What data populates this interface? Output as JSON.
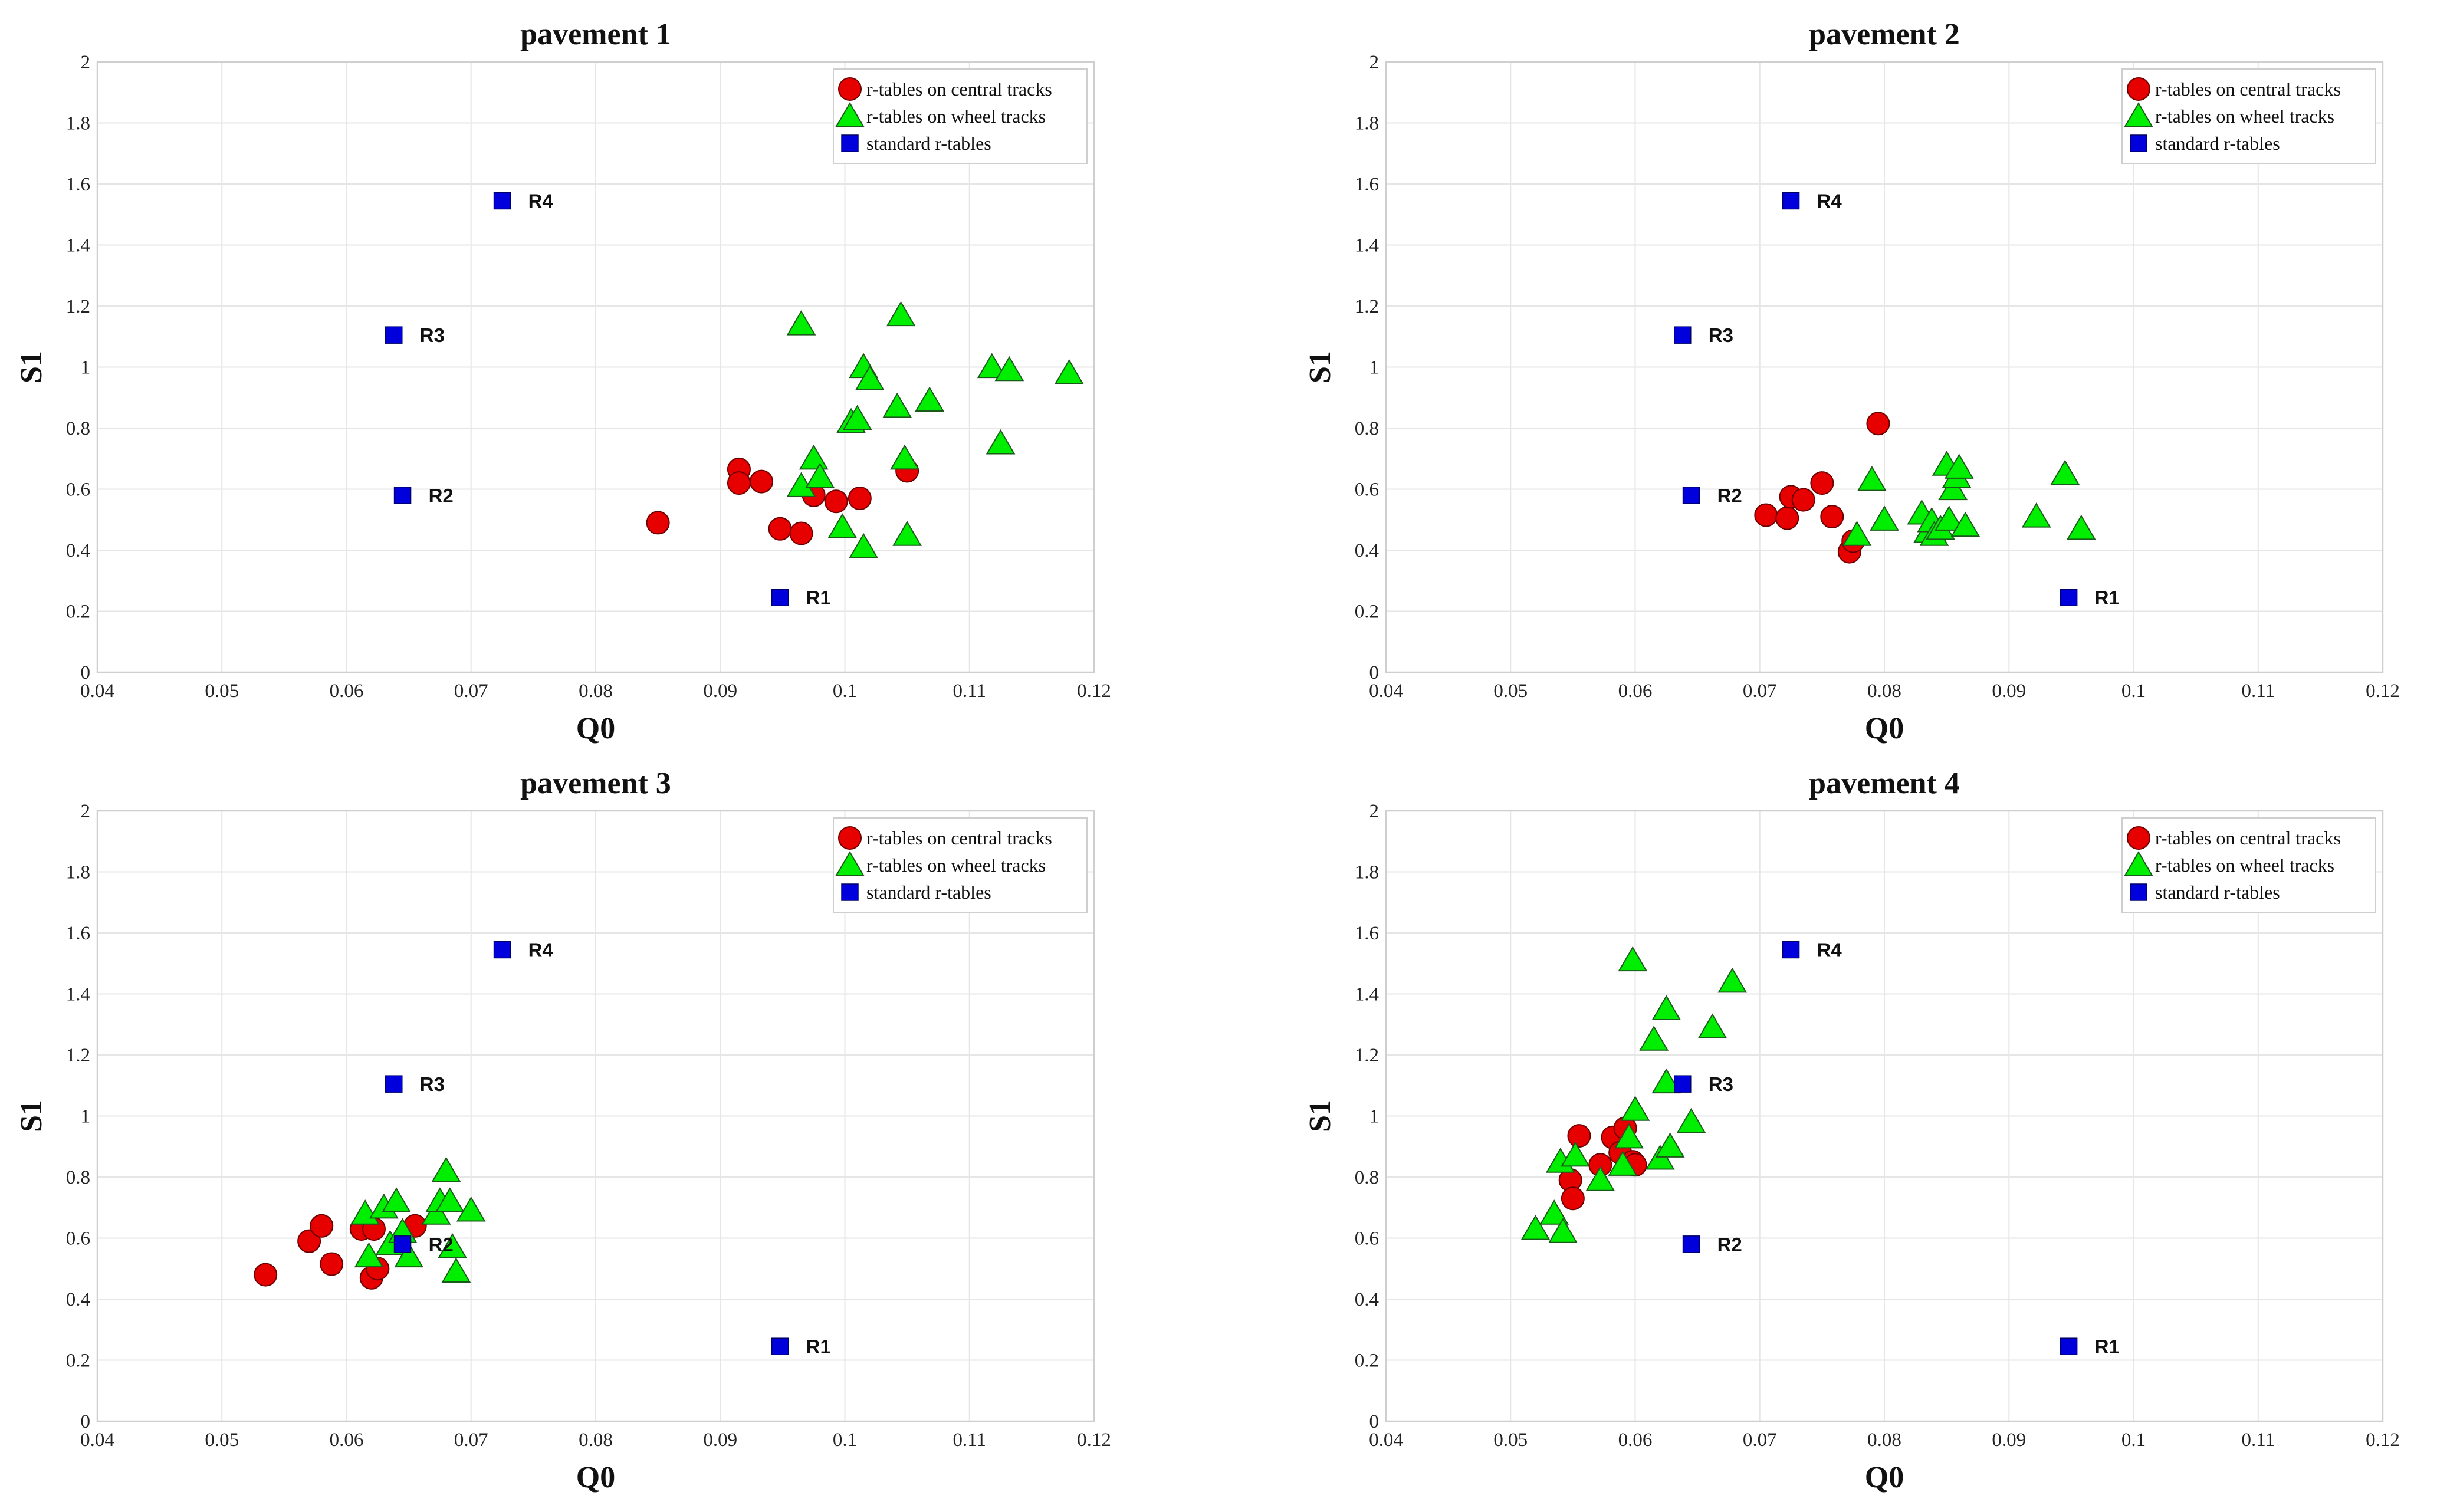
{
  "colors": {
    "central": "#e60000",
    "wheel": "#00ee00",
    "standard": "#0000dd"
  },
  "chart_data": [
    {
      "type": "scatter",
      "title": "pavement 1",
      "xlabel": "Q0",
      "ylabel": "S1",
      "xlim": [
        0.04,
        0.12
      ],
      "ylim": [
        0,
        2
      ],
      "xticks": [
        "0.04",
        "0.05",
        "0.06",
        "0.07",
        "0.08",
        "0.09",
        "0.1",
        "0.11",
        "0.12"
      ],
      "yticks": [
        "0",
        "0.2",
        "0.4",
        "0.6",
        "0.8",
        "1",
        "1.2",
        "1.4",
        "1.6",
        "1.8",
        "2"
      ],
      "grid": true,
      "legend_position": "top-right",
      "legend": [
        "r-tables on central tracks",
        "r-tables on wheel tracks",
        "standard r-tables"
      ],
      "series": [
        {
          "name": "r-tables on central tracks",
          "marker": "circle",
          "x": [
            0.085,
            0.0915,
            0.0915,
            0.0933,
            0.0948,
            0.0965,
            0.0975,
            0.0993,
            0.1012,
            0.105
          ],
          "y": [
            0.49,
            0.665,
            0.62,
            0.625,
            0.47,
            0.455,
            0.58,
            0.56,
            0.57,
            0.66
          ]
        },
        {
          "name": "r-tables on wheel tracks",
          "marker": "triangle",
          "x": [
            0.0965,
            0.0965,
            0.0975,
            0.098,
            0.0998,
            0.1005,
            0.101,
            0.1015,
            0.1015,
            0.102,
            0.1042,
            0.1045,
            0.1048,
            0.105,
            0.1068,
            0.1118,
            0.1125,
            0.1132,
            0.118
          ],
          "y": [
            1.14,
            0.61,
            0.7,
            0.64,
            0.475,
            0.82,
            0.83,
            0.41,
            1.0,
            0.96,
            0.87,
            1.17,
            0.7,
            0.45,
            0.89,
            1.0,
            0.75,
            0.99,
            0.98
          ]
        },
        {
          "name": "standard r-tables",
          "marker": "square",
          "x": [
            0.0948,
            0.0645,
            0.0638,
            0.0725
          ],
          "y": [
            0.245,
            0.58,
            1.105,
            1.545
          ],
          "labels": [
            "R1",
            "R2",
            "R3",
            "R4"
          ]
        }
      ]
    },
    {
      "type": "scatter",
      "title": "pavement 2",
      "xlabel": "Q0",
      "ylabel": "S1",
      "xlim": [
        0.04,
        0.12
      ],
      "ylim": [
        0,
        2
      ],
      "xticks": [
        "0.04",
        "0.05",
        "0.06",
        "0.07",
        "0.08",
        "0.09",
        "0.1",
        "0.11",
        "0.12"
      ],
      "yticks": [
        "0",
        "0.2",
        "0.4",
        "0.6",
        "0.8",
        "1",
        "1.2",
        "1.4",
        "1.6",
        "1.8",
        "2"
      ],
      "grid": true,
      "legend_position": "top-right",
      "legend": [
        "r-tables on central tracks",
        "r-tables on wheel tracks",
        "standard r-tables"
      ],
      "series": [
        {
          "name": "r-tables on central tracks",
          "marker": "circle",
          "x": [
            0.0705,
            0.0722,
            0.0725,
            0.0735,
            0.075,
            0.0758,
            0.0772,
            0.0775,
            0.0795
          ],
          "y": [
            0.515,
            0.505,
            0.575,
            0.565,
            0.62,
            0.51,
            0.395,
            0.43,
            0.815
          ]
        },
        {
          "name": "r-tables on wheel tracks",
          "marker": "triangle",
          "x": [
            0.0778,
            0.079,
            0.08,
            0.083,
            0.0835,
            0.0838,
            0.084,
            0.0845,
            0.085,
            0.0852,
            0.0855,
            0.0858,
            0.086,
            0.0865,
            0.0922,
            0.0945,
            0.0958
          ],
          "y": [
            0.45,
            0.63,
            0.5,
            0.52,
            0.46,
            0.495,
            0.45,
            0.47,
            0.68,
            0.5,
            0.6,
            0.64,
            0.67,
            0.48,
            0.51,
            0.65,
            0.47
          ]
        },
        {
          "name": "standard r-tables",
          "marker": "square",
          "x": [
            0.0948,
            0.0645,
            0.0638,
            0.0725
          ],
          "y": [
            0.245,
            0.58,
            1.105,
            1.545
          ],
          "labels": [
            "R1",
            "R2",
            "R3",
            "R4"
          ]
        }
      ]
    },
    {
      "type": "scatter",
      "title": "pavement 3",
      "xlabel": "Q0",
      "ylabel": "S1",
      "xlim": [
        0.04,
        0.12
      ],
      "ylim": [
        0,
        2
      ],
      "xticks": [
        "0.04",
        "0.05",
        "0.06",
        "0.07",
        "0.08",
        "0.09",
        "0.1",
        "0.11",
        "0.12"
      ],
      "yticks": [
        "0",
        "0.2",
        "0.4",
        "0.6",
        "0.8",
        "1",
        "1.2",
        "1.4",
        "1.6",
        "1.8",
        "2"
      ],
      "grid": true,
      "legend_position": "top-right",
      "legend": [
        "r-tables on central tracks",
        "r-tables on wheel tracks",
        "standard r-tables"
      ],
      "series": [
        {
          "name": "r-tables on central tracks",
          "marker": "circle",
          "x": [
            0.0535,
            0.057,
            0.058,
            0.0588,
            0.0612,
            0.062,
            0.0622,
            0.0625,
            0.0655
          ],
          "y": [
            0.48,
            0.59,
            0.64,
            0.515,
            0.63,
            0.47,
            0.63,
            0.5,
            0.64
          ]
        },
        {
          "name": "r-tables on wheel tracks",
          "marker": "triangle",
          "x": [
            0.0615,
            0.0618,
            0.063,
            0.0635,
            0.064,
            0.0645,
            0.065,
            0.0672,
            0.0675,
            0.068,
            0.0683,
            0.0685,
            0.0688,
            0.07
          ],
          "y": [
            0.68,
            0.54,
            0.7,
            0.58,
            0.72,
            0.62,
            0.54,
            0.68,
            0.72,
            0.82,
            0.72,
            0.57,
            0.49,
            0.69
          ]
        },
        {
          "name": "standard r-tables",
          "marker": "square",
          "x": [
            0.0948,
            0.0645,
            0.0638,
            0.0725
          ],
          "y": [
            0.245,
            0.58,
            1.105,
            1.545
          ],
          "labels": [
            "R1",
            "R2",
            "R3",
            "R4"
          ]
        }
      ]
    },
    {
      "type": "scatter",
      "title": "pavement 4",
      "xlabel": "Q0",
      "ylabel": "S1",
      "xlim": [
        0.04,
        0.12
      ],
      "ylim": [
        0,
        2
      ],
      "xticks": [
        "0.04",
        "0.05",
        "0.06",
        "0.07",
        "0.08",
        "0.09",
        "0.1",
        "0.11",
        "0.12"
      ],
      "yticks": [
        "0",
        "0.2",
        "0.4",
        "0.6",
        "0.8",
        "1",
        "1.2",
        "1.4",
        "1.6",
        "1.8",
        "2"
      ],
      "grid": true,
      "legend_position": "top-right",
      "legend": [
        "r-tables on central tracks",
        "r-tables on wheel tracks",
        "standard r-tables"
      ],
      "series": [
        {
          "name": "r-tables on central tracks",
          "marker": "circle",
          "x": [
            0.0548,
            0.055,
            0.0555,
            0.0572,
            0.0582,
            0.0588,
            0.0592,
            0.0598,
            0.06
          ],
          "y": [
            0.79,
            0.73,
            0.935,
            0.84,
            0.93,
            0.88,
            0.96,
            0.85,
            0.84
          ]
        },
        {
          "name": "r-tables on wheel tracks",
          "marker": "triangle",
          "x": [
            0.052,
            0.0535,
            0.054,
            0.0542,
            0.0552,
            0.0572,
            0.059,
            0.0595,
            0.0598,
            0.06,
            0.0615,
            0.062,
            0.0625,
            0.0625,
            0.0628,
            0.0645,
            0.0662,
            0.0678
          ],
          "y": [
            0.63,
            0.68,
            0.85,
            0.62,
            0.87,
            0.79,
            0.84,
            0.93,
            1.51,
            1.02,
            1.25,
            0.86,
            1.35,
            1.11,
            0.9,
            0.98,
            1.29,
            1.44
          ]
        },
        {
          "name": "standard r-tables",
          "marker": "square",
          "x": [
            0.0948,
            0.0645,
            0.0638,
            0.0725
          ],
          "y": [
            0.245,
            0.58,
            1.105,
            1.545
          ],
          "labels": [
            "R1",
            "R2",
            "R3",
            "R4"
          ]
        }
      ]
    }
  ]
}
